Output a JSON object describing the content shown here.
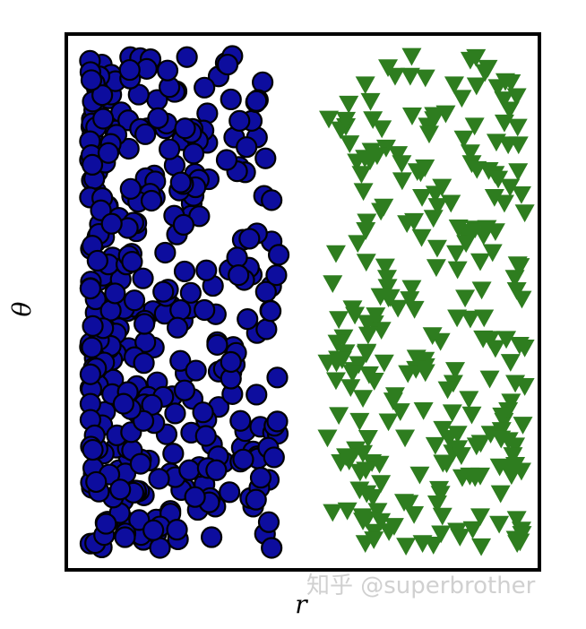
{
  "chart_data": {
    "type": "scatter",
    "title": "",
    "xlabel": "r",
    "ylabel": "θ",
    "xlim": [
      0,
      1
    ],
    "ylim": [
      0,
      1
    ],
    "grid": false,
    "legend": "none",
    "series": [
      {
        "marker": "circle",
        "color": "#0d0d9e",
        "edge_color": "#000000",
        "x_range": [
          0.05,
          0.45
        ],
        "count": 380,
        "seed": 7,
        "density": "dense near x=0.05–0.30, sparse toward 0.45",
        "x": [],
        "y": []
      },
      {
        "marker": "triangle-down",
        "color": "#2e7d1f",
        "x_range": [
          0.55,
          0.97
        ],
        "count": 260,
        "seed": 13,
        "density": "roughly uniform",
        "x": [],
        "y": []
      }
    ]
  },
  "watermark": {
    "text": "知乎 @superbrother"
  }
}
